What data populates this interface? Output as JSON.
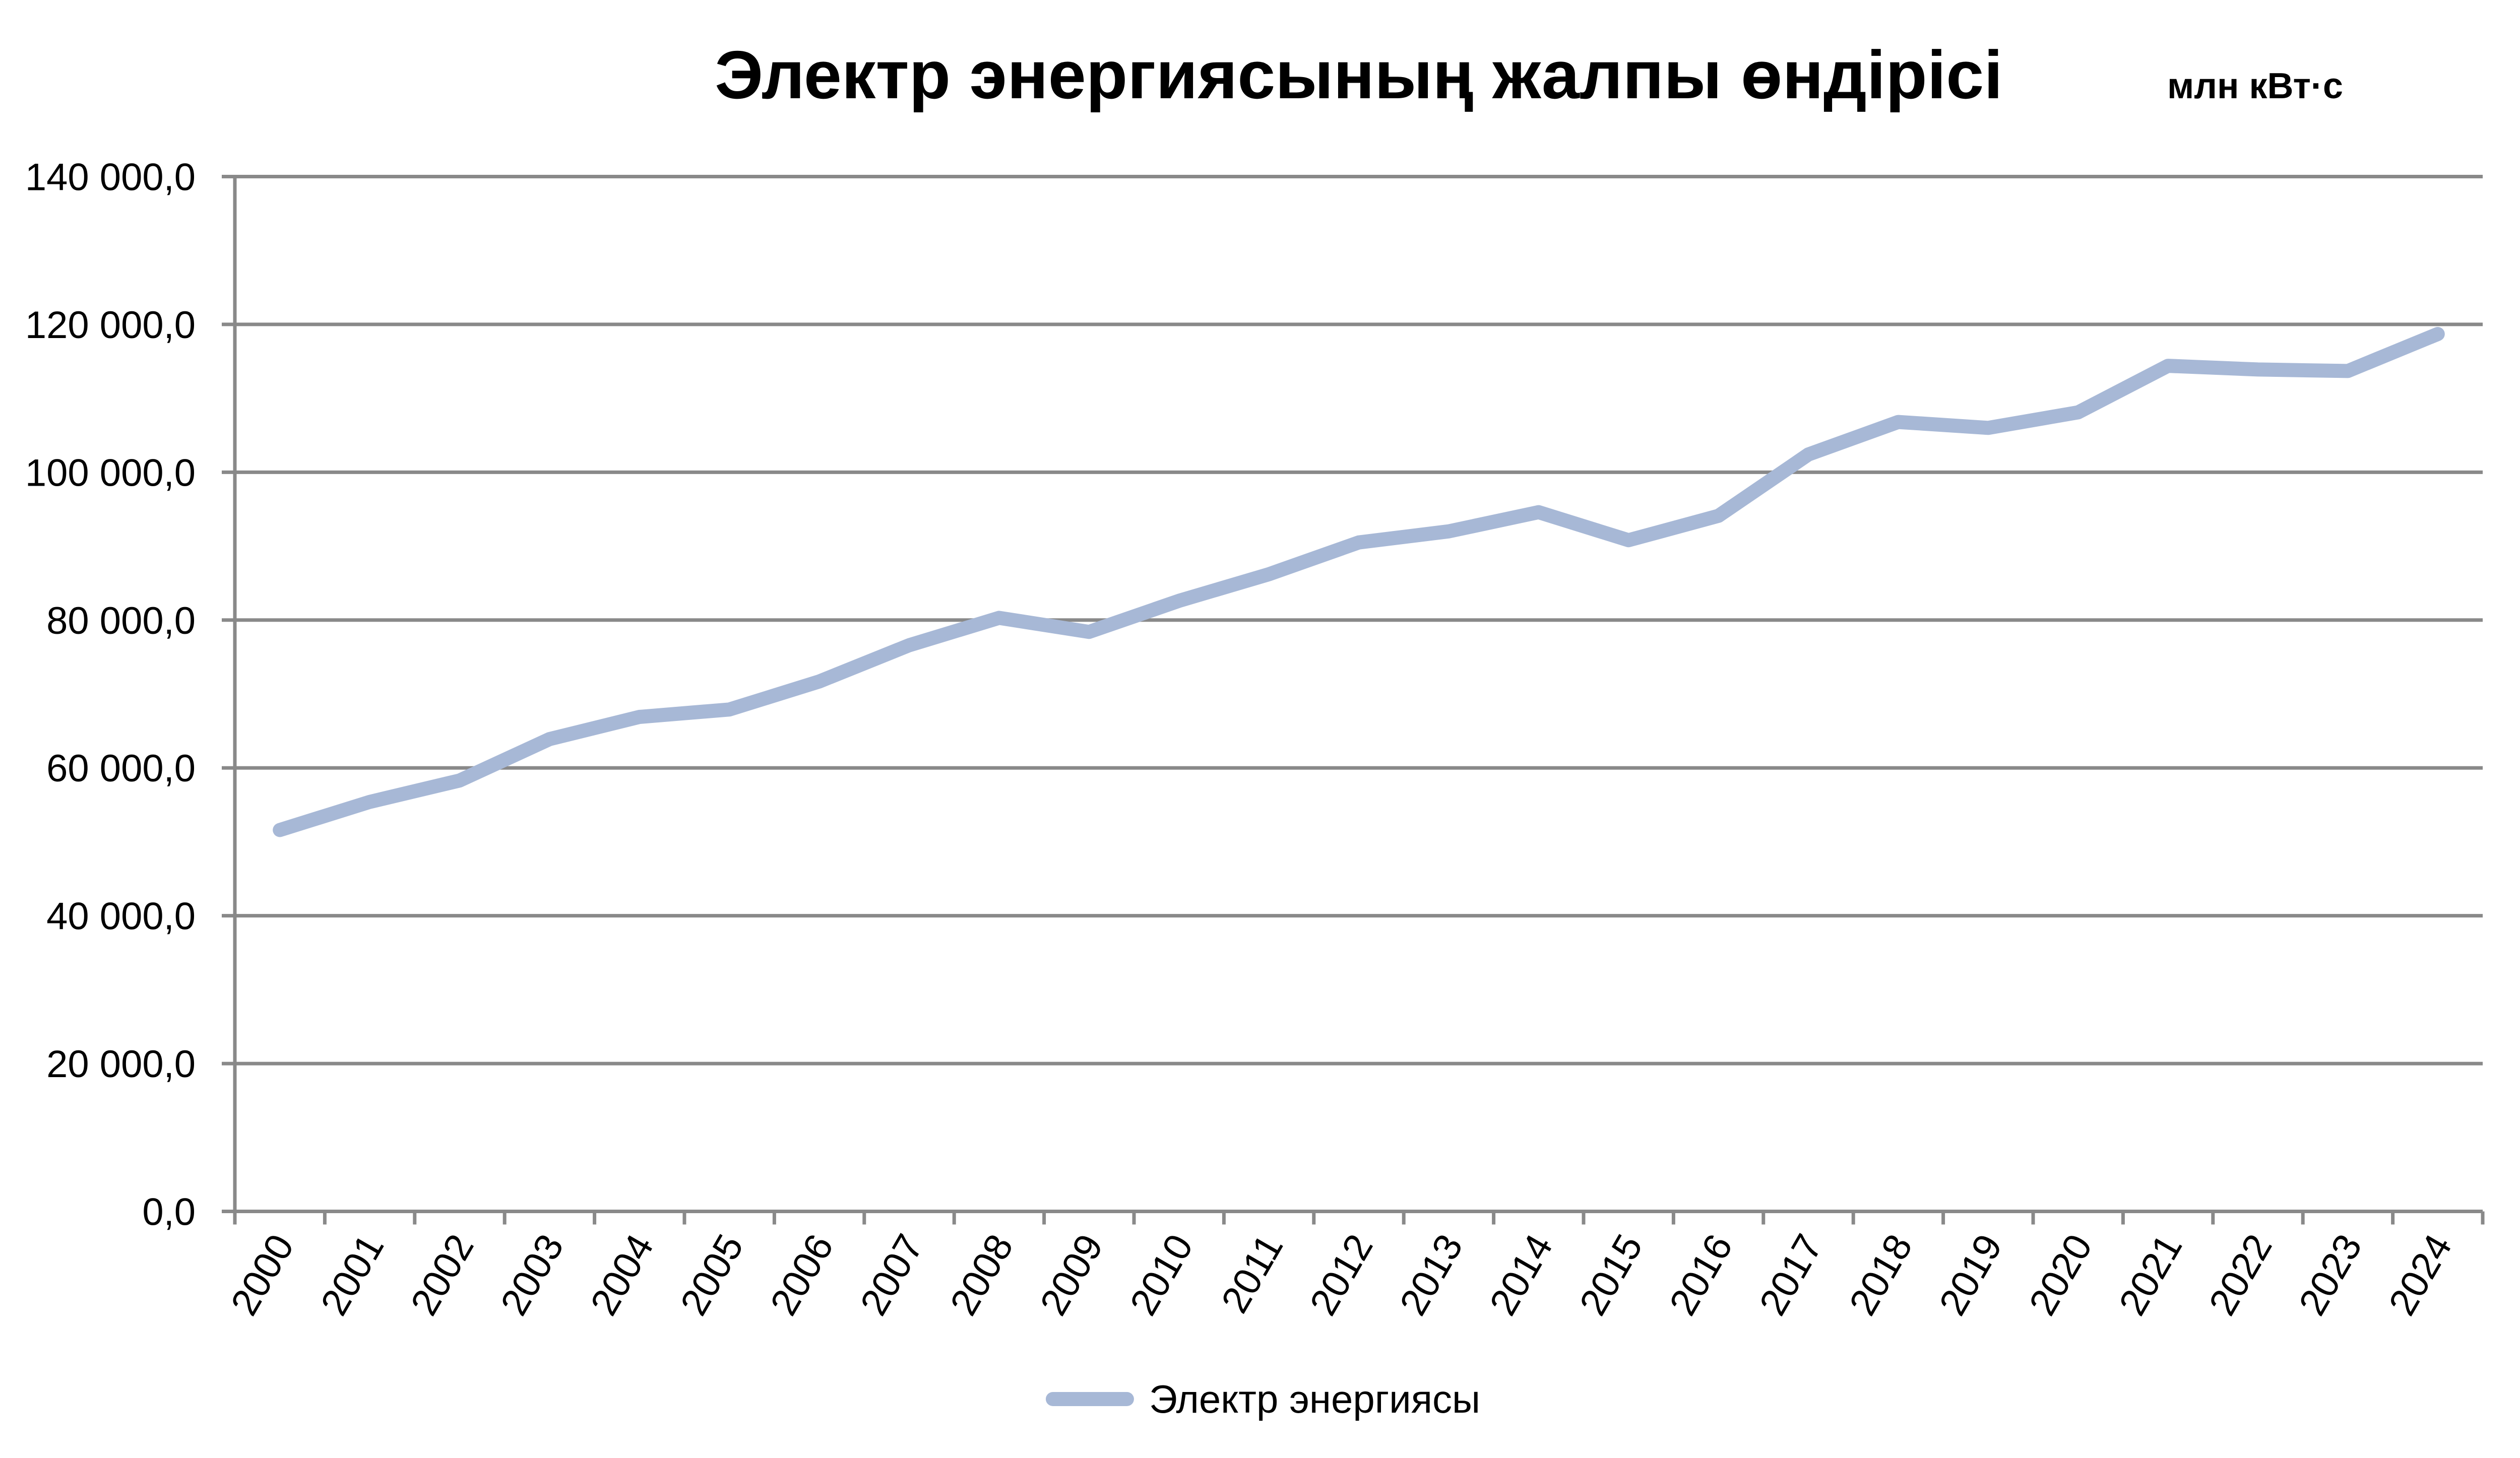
{
  "chart_data": {
    "type": "line",
    "title": "Электр энергиясының жалпы өндірісі",
    "unit_label": "млн кВт·с",
    "xlabel": "",
    "ylabel": "",
    "categories": [
      "2000",
      "2001",
      "2002",
      "2003",
      "2004",
      "2005",
      "2006",
      "2007",
      "2008",
      "2009",
      "2010",
      "2011",
      "2012",
      "2013",
      "2014",
      "2015",
      "2016",
      "2017",
      "2018",
      "2019",
      "2020",
      "2021",
      "2022",
      "2023",
      "2024"
    ],
    "series": [
      {
        "name": "Электр энергиясы",
        "color": "#a7b8d6",
        "values": [
          51600,
          55400,
          58300,
          63900,
          66900,
          67900,
          71700,
          76600,
          80300,
          78400,
          82600,
          86200,
          90500,
          92000,
          94600,
          90800,
          94100,
          102400,
          106800,
          106000,
          108100,
          114400,
          113900,
          113700,
          118700
        ]
      }
    ],
    "ylim": [
      0,
      140000
    ],
    "ytick_step": 20000,
    "ytick_labels": [
      "0,0",
      "20 000,0",
      "40 000,0",
      "60 000,0",
      "80 000,0",
      "100 000,0",
      "120 000,0",
      "140 000,0"
    ],
    "grid": "horizontal",
    "legend_position": "bottom-center",
    "colors": {
      "axis": "#898989",
      "grid": "#898989",
      "text": "#000000",
      "background": "#ffffff"
    }
  }
}
